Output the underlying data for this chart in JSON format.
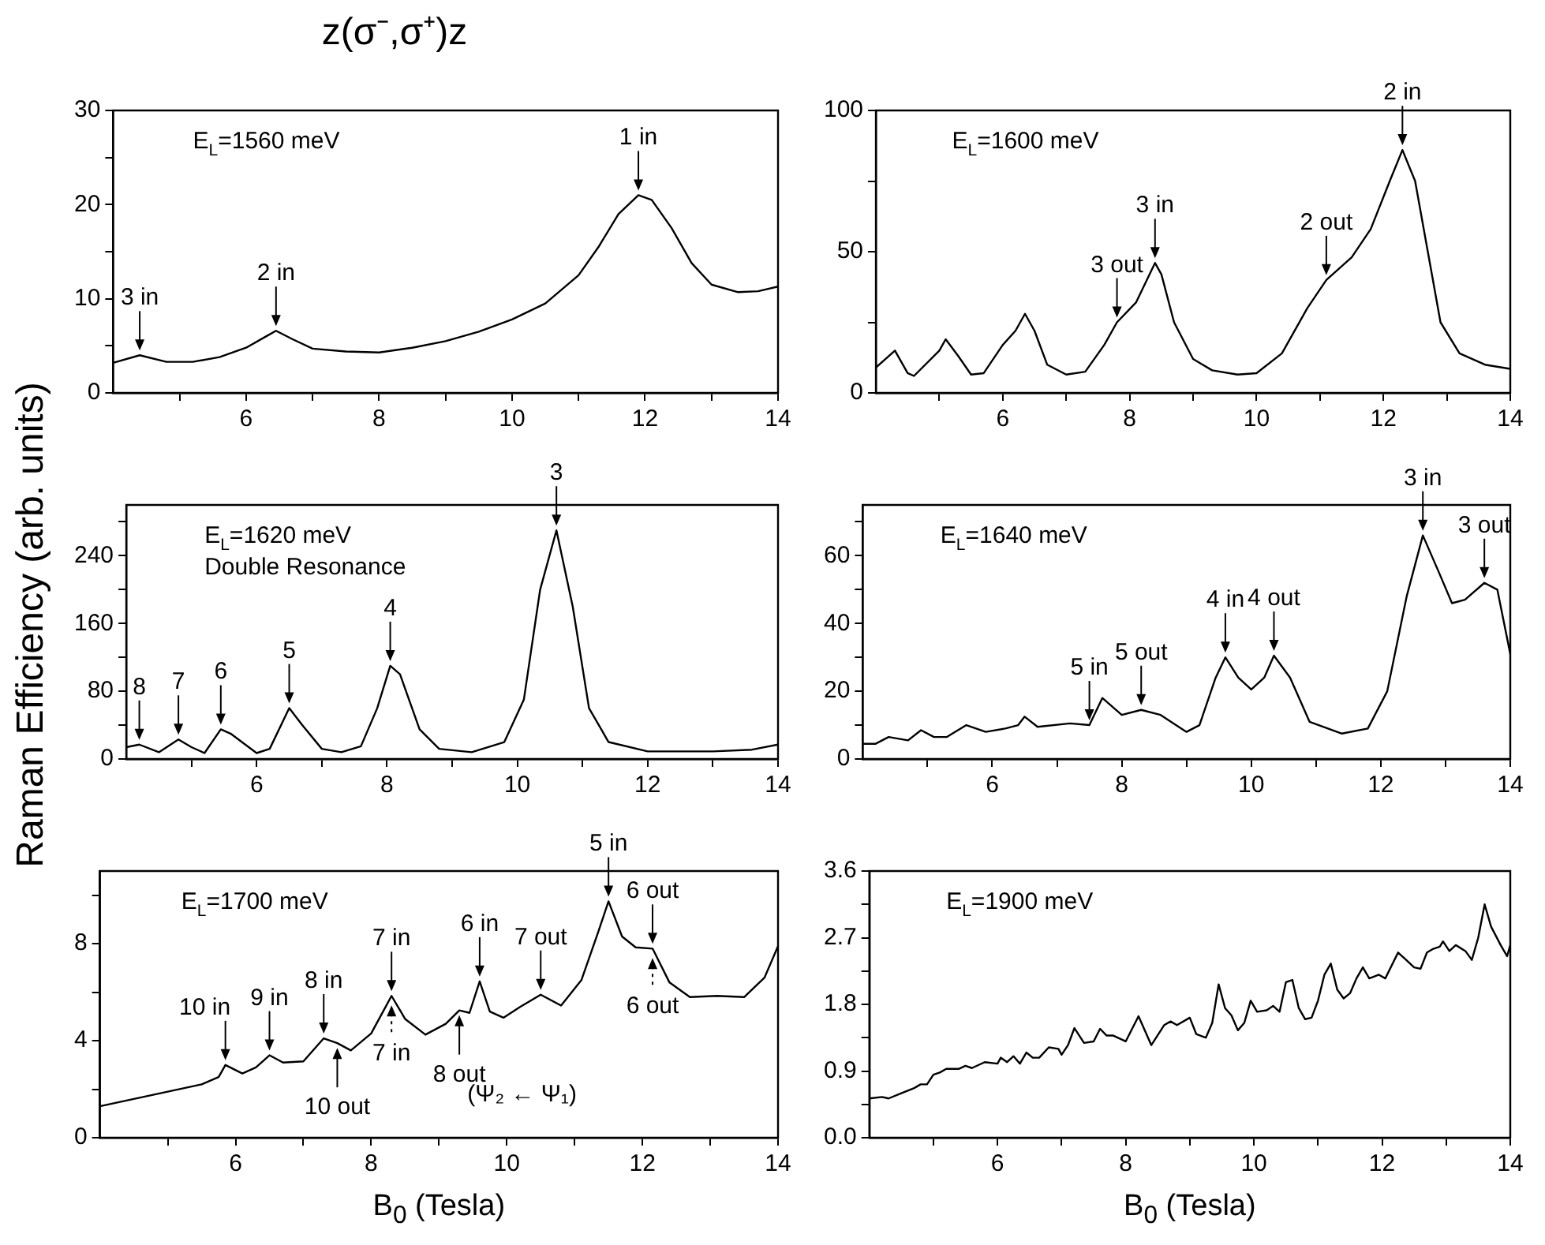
{
  "chart_data": [
    {
      "type": "line",
      "title": "z(σ⁻,σ⁺)z",
      "xlim": [
        4,
        14
      ],
      "ylim": [
        0,
        30
      ],
      "xticks": [
        {
          "value": 5,
          "label": null
        },
        6,
        {
          "value": 7,
          "label": null
        },
        8,
        {
          "value": 9,
          "label": null
        },
        10,
        {
          "value": 11,
          "label": null
        },
        12,
        {
          "value": 13,
          "label": null
        },
        14
      ],
      "yticks": [
        0,
        {
          "value": 5,
          "label": null
        },
        10,
        {
          "value": 15,
          "label": null
        },
        20,
        {
          "value": 25,
          "label": null
        },
        30
      ],
      "x": [
        4,
        4.4,
        4.8,
        5.2,
        5.6,
        6.0,
        6.3,
        6.45,
        6.7,
        7.0,
        7.5,
        8.0,
        8.5,
        9.0,
        9.5,
        10.0,
        10.5,
        11.0,
        11.3,
        11.6,
        11.9,
        12.1,
        12.4,
        12.7,
        13.0,
        13.4,
        13.7,
        14
      ],
      "series": [
        {
          "color": "#000000",
          "values": [
            3.2,
            4.0,
            3.3,
            3.3,
            3.8,
            4.8,
            6.0,
            6.6,
            5.7,
            4.7,
            4.4,
            4.3,
            4.8,
            5.5,
            6.5,
            7.8,
            9.5,
            12.5,
            15.5,
            19,
            21,
            20.5,
            17.5,
            13.8,
            11.5,
            10.7,
            10.8,
            11.3
          ]
        }
      ],
      "annotations": [
        "E$_{L}$=1560 meV",
        {
          "text": "3 in",
          "x": 4.4,
          "y": 4.0
        },
        {
          "text": "2 in",
          "x": 6.45,
          "y": 6.6
        },
        {
          "text": "1 in",
          "x": 11.9,
          "y": 21
        }
      ]
    },
    {
      "type": "line",
      "xlim": [
        4,
        14
      ],
      "ylim": [
        0,
        100
      ],
      "xticks": [
        {
          "value": 5,
          "label": null
        },
        6,
        {
          "value": 7,
          "label": null
        },
        8,
        {
          "value": 9,
          "label": null
        },
        10,
        {
          "value": 11,
          "label": null
        },
        12,
        {
          "value": 13,
          "label": null
        },
        14
      ],
      "yticks": [
        0,
        {
          "value": 25,
          "label": null
        },
        50,
        {
          "value": 75,
          "label": null
        },
        100
      ],
      "x": [
        4.0,
        4.3,
        4.5,
        4.6,
        5.0,
        5.1,
        5.3,
        5.5,
        5.7,
        6.0,
        6.2,
        6.35,
        6.5,
        6.7,
        7.0,
        7.3,
        7.6,
        7.8,
        8.1,
        8.4,
        8.5,
        8.7,
        9.0,
        9.3,
        9.7,
        10.0,
        10.4,
        10.8,
        11.1,
        11.5,
        11.8,
        12.1,
        12.3,
        12.5,
        12.7,
        12.9,
        13.2,
        13.6,
        14
      ],
      "series": [
        {
          "color": "#000000",
          "values": [
            9,
            15,
            7,
            6,
            15,
            19,
            13,
            6.5,
            7,
            17,
            22,
            28,
            22,
            10,
            6.5,
            7.5,
            17,
            25,
            32,
            46,
            42,
            25,
            12,
            8,
            6.5,
            7,
            14,
            30,
            40,
            48,
            58,
            75,
            86,
            75,
            50,
            25,
            14,
            10,
            8.5
          ]
        }
      ],
      "annotations": [
        "E$_{L}$=1600 meV",
        {
          "text": "3 out",
          "x": 7.8,
          "y": 25
        },
        {
          "text": "3 in",
          "x": 8.4,
          "y": 46
        },
        {
          "text": "2 out",
          "x": 11.1,
          "y": 40
        },
        {
          "text": "2 in",
          "x": 12.3,
          "y": 86
        }
      ]
    },
    {
      "type": "line",
      "ylabel": "Raman Efficiency (arb. units)",
      "xlim": [
        4,
        14
      ],
      "ylim": [
        0,
        300
      ],
      "xticks": [
        {
          "value": 5,
          "label": null
        },
        6,
        {
          "value": 7,
          "label": null
        },
        8,
        {
          "value": 9,
          "label": null
        },
        10,
        {
          "value": 11,
          "label": null
        },
        12,
        {
          "value": 13,
          "label": null
        },
        14
      ],
      "yticks": [
        0,
        {
          "value": 40,
          "label": null
        },
        80,
        {
          "value": 120,
          "label": null
        },
        160,
        {
          "value": 200,
          "label": null
        },
        240,
        {
          "value": 280,
          "label": null
        }
      ],
      "x": [
        4.0,
        4.2,
        4.5,
        4.8,
        5.0,
        5.2,
        5.45,
        5.6,
        6.0,
        6.2,
        6.5,
        6.7,
        7.0,
        7.3,
        7.6,
        7.85,
        8.05,
        8.2,
        8.5,
        8.8,
        9.3,
        9.8,
        10.1,
        10.35,
        10.6,
        10.85,
        11.1,
        11.4,
        12,
        13,
        13.6,
        14
      ],
      "series": [
        {
          "color": "#000000",
          "values": [
            14,
            17,
            8,
            23,
            14,
            7,
            35,
            30,
            7,
            12,
            60,
            40,
            12,
            8,
            15,
            60,
            110,
            100,
            35,
            12,
            8,
            20,
            70,
            200,
            270,
            180,
            60,
            20,
            9,
            9,
            11,
            17
          ]
        }
      ],
      "annotations": [
        "E$_{L}$=1620 meV",
        "Double Resonance",
        {
          "text": "8",
          "x": 4.2,
          "y": 17
        },
        {
          "text": "7",
          "x": 4.8,
          "y": 23
        },
        {
          "text": "6",
          "x": 5.45,
          "y": 35
        },
        {
          "text": "5",
          "x": 6.5,
          "y": 60
        },
        {
          "text": "4",
          "x": 8.05,
          "y": 110
        },
        {
          "text": "3",
          "x": 10.6,
          "y": 270
        }
      ]
    },
    {
      "type": "line",
      "xlim": [
        4,
        14
      ],
      "ylim": [
        0,
        75
      ],
      "xticks": [
        {
          "value": 5,
          "label": null
        },
        6,
        {
          "value": 7,
          "label": null
        },
        8,
        {
          "value": 9,
          "label": null
        },
        10,
        {
          "value": 11,
          "label": null
        },
        12,
        {
          "value": 13,
          "label": null
        },
        14
      ],
      "yticks": [
        0,
        {
          "value": 10,
          "label": null
        },
        20,
        {
          "value": 30,
          "label": null
        },
        40,
        {
          "value": 50,
          "label": null
        },
        60,
        {
          "value": 70,
          "label": null
        }
      ],
      "x": [
        4.0,
        4.2,
        4.4,
        4.7,
        4.9,
        5.1,
        5.3,
        5.6,
        5.9,
        6.2,
        6.4,
        6.5,
        6.7,
        7.2,
        7.5,
        7.7,
        8.0,
        8.3,
        8.6,
        9.0,
        9.2,
        9.45,
        9.6,
        9.8,
        10.0,
        10.2,
        10.35,
        10.6,
        10.9,
        11.4,
        11.8,
        12.1,
        12.4,
        12.65,
        12.9,
        13.1,
        13.3,
        13.6,
        13.8,
        14
      ],
      "series": [
        {
          "color": "#000000",
          "values": [
            4.5,
            4.5,
            6.5,
            5.5,
            8.5,
            6.5,
            6.5,
            10,
            8,
            9,
            10,
            12.5,
            9.5,
            10.5,
            10,
            18,
            13,
            14.5,
            13,
            8,
            10,
            24,
            30,
            24,
            20.5,
            24,
            30.5,
            24,
            11,
            7.5,
            9,
            20,
            48,
            66,
            55,
            46,
            47,
            52,
            50,
            31
          ]
        }
      ],
      "annotations": [
        "E$_{L}$=1640 meV",
        {
          "text": "5 in",
          "x": 7.5,
          "y": 10
        },
        {
          "text": "5 out",
          "x": 8.3,
          "y": 14.5
        },
        {
          "text": "4 in",
          "x": 9.6,
          "y": 30
        },
        {
          "text": "4 out",
          "x": 10.35,
          "y": 30.5
        },
        {
          "text": "3 in",
          "x": 12.65,
          "y": 66
        },
        {
          "text": "3 out",
          "x": 13.6,
          "y": 52
        }
      ]
    },
    {
      "type": "line",
      "xlabel": "B$_{0}$ (Tesla)",
      "xlim": [
        4,
        14
      ],
      "ylim": [
        0,
        11
      ],
      "xticks": [
        {
          "value": 5,
          "label": null
        },
        6,
        {
          "value": 7,
          "label": null
        },
        8,
        {
          "value": 9,
          "label": null
        },
        10,
        {
          "value": 11,
          "label": null
        },
        12,
        {
          "value": 13,
          "label": null
        },
        14
      ],
      "yticks": [
        0,
        {
          "value": 2,
          "label": null
        },
        4,
        {
          "value": 6,
          "label": null
        },
        8,
        {
          "value": 10,
          "label": null
        }
      ],
      "x": [
        4.0,
        4.5,
        5.0,
        5.5,
        5.75,
        5.85,
        6.1,
        6.3,
        6.5,
        6.7,
        7.0,
        7.3,
        7.5,
        7.7,
        8.0,
        8.3,
        8.5,
        8.8,
        9.1,
        9.3,
        9.45,
        9.6,
        9.75,
        9.95,
        10.2,
        10.5,
        10.8,
        11.1,
        11.35,
        11.5,
        11.7,
        11.9,
        12.15,
        12.4,
        12.7,
        13.1,
        13.5,
        13.8,
        14.0
      ],
      "series": [
        {
          "color": "#000000",
          "values": [
            1.3,
            1.6,
            1.9,
            2.2,
            2.5,
            3.0,
            2.65,
            2.9,
            3.4,
            3.1,
            3.15,
            4.1,
            3.9,
            3.6,
            4.3,
            5.85,
            4.9,
            4.25,
            4.7,
            5.25,
            5.15,
            6.45,
            5.2,
            4.95,
            5.4,
            5.9,
            5.45,
            6.5,
            8.5,
            9.75,
            8.3,
            7.85,
            7.8,
            6.4,
            5.8,
            5.85,
            5.8,
            6.6,
            7.9
          ]
        }
      ],
      "annotations": [
        "E$_{L}$=1700 meV",
        "(Ψ₂ ← Ψ₁)",
        {
          "text": "10 in",
          "x": 5.85,
          "y": 3.0
        },
        {
          "text": "9 in",
          "x": 6.5,
          "y": 3.4
        },
        {
          "text": "8 in",
          "x": 7.3,
          "y": 4.1
        },
        {
          "text": "10 out",
          "x": 7.5,
          "y": 3.9
        },
        {
          "text": "7 in",
          "x": 8.3,
          "y": 5.85
        },
        {
          "text": "8 out",
          "x": 9.3,
          "y": 5.25
        },
        {
          "text": "6 in",
          "x": 9.6,
          "y": 6.45
        },
        {
          "text": "7 out",
          "x": 10.5,
          "y": 5.9
        },
        {
          "text": "5 in",
          "x": 11.5,
          "y": 9.75
        },
        {
          "text": "6 out",
          "x": 12.15,
          "y": 7.8
        },
        {
          "text": "7 in",
          "x": 8.3,
          "y": 5.85
        },
        {
          "text": "6 out",
          "x": 12.15,
          "y": 7.8
        }
      ]
    },
    {
      "type": "line",
      "xlabel": "B$_{0}$ (Tesla)",
      "xlim": [
        4,
        14
      ],
      "ylim": [
        0,
        3.6
      ],
      "xticks": [
        {
          "value": 5,
          "label": null
        },
        6,
        {
          "value": 7,
          "label": null
        },
        8,
        {
          "value": 9,
          "label": null
        },
        10,
        {
          "value": 11,
          "label": null
        },
        12,
        {
          "value": 13,
          "label": null
        },
        14
      ],
      "yticks": [
        {
          "value": 0,
          "label": "0.0"
        },
        {
          "value": 0.45,
          "label": null
        },
        0.9,
        {
          "value": 1.35,
          "label": null
        },
        1.8,
        {
          "value": 2.25,
          "label": null
        },
        2.7,
        {
          "value": 3.15,
          "label": null
        },
        3.6
      ],
      "x": [
        4.0,
        4.2,
        4.3,
        4.5,
        4.7,
        4.8,
        4.9,
        5.0,
        5.1,
        5.2,
        5.4,
        5.5,
        5.6,
        5.7,
        5.8,
        6.0,
        6.05,
        6.15,
        6.25,
        6.35,
        6.45,
        6.55,
        6.65,
        6.8,
        6.95,
        7.0,
        7.1,
        7.2,
        7.35,
        7.5,
        7.6,
        7.7,
        7.8,
        8.0,
        8.2,
        8.4,
        8.6,
        8.7,
        8.8,
        9.0,
        9.1,
        9.25,
        9.35,
        9.45,
        9.55,
        9.65,
        9.75,
        9.85,
        9.95,
        10.05,
        10.2,
        10.3,
        10.4,
        10.5,
        10.6,
        10.7,
        10.8,
        10.9,
        11.0,
        11.1,
        11.2,
        11.3,
        11.4,
        11.5,
        11.6,
        11.7,
        11.8,
        11.95,
        12.05,
        12.25,
        12.5,
        12.6,
        12.7,
        12.8,
        12.9,
        12.95,
        13.05,
        13.15,
        13.3,
        13.4,
        13.5,
        13.6,
        13.7,
        13.85,
        13.95,
        14.0
      ],
      "series": [
        {
          "color": "#000000",
          "values": [
            0.53,
            0.55,
            0.53,
            0.6,
            0.67,
            0.72,
            0.72,
            0.85,
            0.88,
            0.93,
            0.93,
            0.97,
            0.94,
            0.98,
            1.02,
            1.0,
            1.08,
            1.02,
            1.1,
            1.0,
            1.15,
            1.08,
            1.08,
            1.22,
            1.2,
            1.12,
            1.25,
            1.48,
            1.28,
            1.3,
            1.47,
            1.38,
            1.38,
            1.3,
            1.64,
            1.25,
            1.52,
            1.57,
            1.52,
            1.62,
            1.4,
            1.35,
            1.55,
            2.07,
            1.75,
            1.65,
            1.45,
            1.55,
            1.85,
            1.7,
            1.72,
            1.78,
            1.7,
            2.1,
            2.13,
            1.75,
            1.6,
            1.62,
            1.85,
            2.2,
            2.35,
            2.0,
            1.88,
            1.95,
            2.15,
            2.3,
            2.15,
            2.2,
            2.15,
            2.5,
            2.3,
            2.28,
            2.5,
            2.55,
            2.58,
            2.65,
            2.52,
            2.6,
            2.52,
            2.4,
            2.7,
            3.15,
            2.85,
            2.6,
            2.45,
            2.6
          ]
        }
      ],
      "annotations": [
        "E$_{L}$=1900 meV"
      ]
    }
  ]
}
